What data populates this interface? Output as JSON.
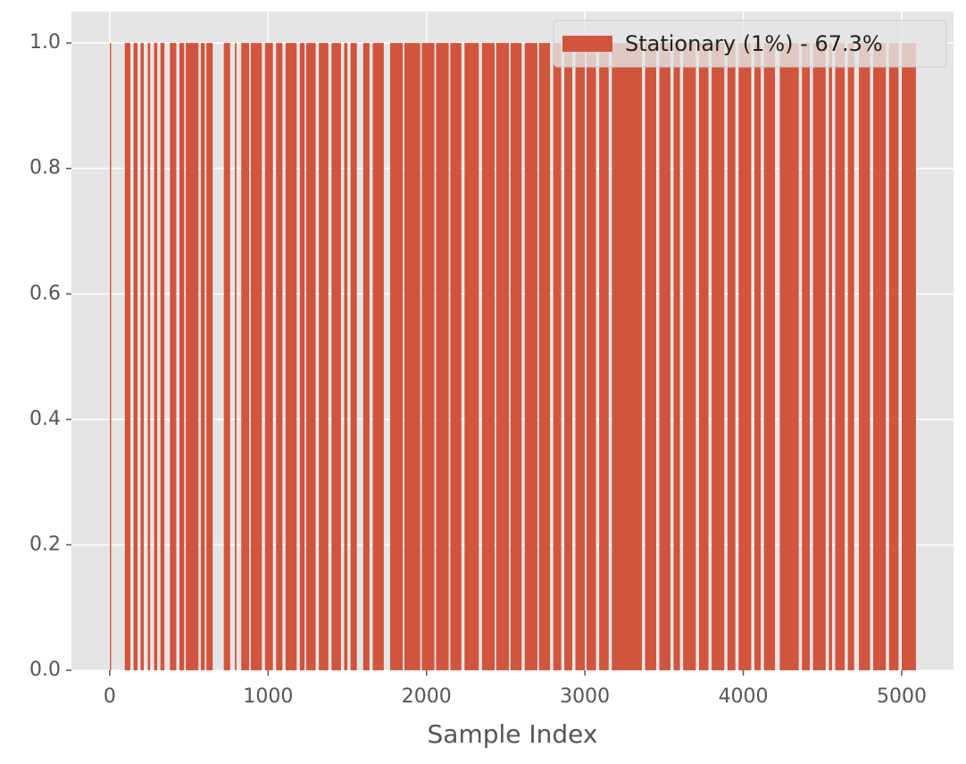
{
  "chart_data": {
    "type": "bar",
    "xlabel": "Sample Index",
    "series": [
      {
        "name": "Stationary (1%) - 67.3%",
        "color": "#d1553d",
        "x": [
          0,
          95,
          150,
          195,
          240,
          280,
          320,
          380,
          440,
          480,
          575,
          610,
          720,
          790,
          830,
          890,
          980,
          1050,
          1110,
          1200,
          1240,
          1320,
          1400,
          1480,
          1520,
          1600,
          1660,
          1770,
          1860,
          1970,
          2060,
          2150,
          2240,
          2350,
          2440,
          2530,
          2620,
          2710,
          2800,
          2870,
          2940,
          3010,
          3090,
          3170,
          3380,
          3470,
          3560,
          3620,
          3720,
          3800,
          3900,
          3970,
          4070,
          4130,
          4230,
          4370,
          4440,
          4540,
          4580,
          4660,
          4730,
          4820,
          4920,
          5000
        ],
        "x_end": [
          3,
          130,
          175,
          215,
          255,
          300,
          345,
          420,
          470,
          560,
          600,
          650,
          760,
          800,
          880,
          960,
          1030,
          1090,
          1180,
          1230,
          1300,
          1380,
          1460,
          1500,
          1560,
          1640,
          1730,
          1850,
          1960,
          2050,
          2140,
          2220,
          2330,
          2430,
          2520,
          2600,
          2700,
          2780,
          2850,
          2920,
          3000,
          3070,
          3150,
          3360,
          3450,
          3540,
          3600,
          3700,
          3780,
          3880,
          3950,
          4050,
          4110,
          4200,
          4350,
          4420,
          4520,
          4560,
          4640,
          4700,
          4800,
          4900,
          4980,
          5090
        ],
        "values": [
          1,
          1,
          1,
          1,
          1,
          1,
          1,
          1,
          1,
          1,
          1,
          1,
          1,
          1,
          1,
          1,
          1,
          1,
          1,
          1,
          1,
          1,
          1,
          1,
          1,
          1,
          1,
          1,
          1,
          1,
          1,
          1,
          1,
          1,
          1,
          1,
          1,
          1,
          1,
          1,
          1,
          1,
          1,
          1,
          1,
          1,
          1,
          1,
          1,
          1,
          1,
          1,
          1,
          1,
          1,
          1,
          1,
          1,
          1,
          1,
          1,
          1,
          1,
          1
        ]
      }
    ],
    "xlim": [
      -242,
      5327
    ],
    "ylim": [
      0,
      1.05
    ],
    "xticks": [
      0,
      1000,
      2000,
      3000,
      4000,
      5000
    ],
    "yticks": [
      {
        "value": 0,
        "label": "0.0"
      },
      {
        "value": 0.2,
        "label": "0.2"
      },
      {
        "value": 0.4,
        "label": "0.4"
      },
      {
        "value": 0.6,
        "label": "0.6"
      },
      {
        "value": 0.8,
        "label": "0.8"
      },
      {
        "value": 1.0,
        "label": "1.0"
      }
    ],
    "grid": true,
    "legend": "upper right"
  }
}
